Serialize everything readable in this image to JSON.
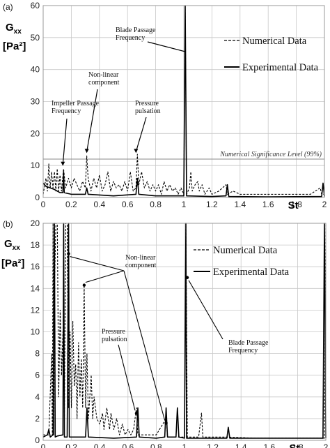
{
  "chart_data": [
    {
      "panel_label": "(a)",
      "type": "line",
      "ylabel_main": "G",
      "ylabel_sub": "xx",
      "ylabel_unit": "[Pa²]",
      "xlabel": "St",
      "xlim": [
        0,
        2
      ],
      "ylim": [
        0,
        60
      ],
      "x_ticks": [
        "0",
        "0.2",
        "0.4",
        "0.6",
        "0.8",
        "1",
        "1.2",
        "1.4",
        "1.6",
        "1.8",
        "2"
      ],
      "y_ticks": [
        "0",
        "10",
        "20",
        "30",
        "40",
        "50",
        "60"
      ],
      "grid": true,
      "legend_position": "top-right",
      "legend": [
        "Numerical Data",
        "Experimental Data"
      ],
      "significance_level": {
        "label": "Numerical Significance Level  (99%)",
        "value": 12
      },
      "annotations": [
        {
          "text": [
            "Blade Passage",
            "Frequency"
          ],
          "x": 1.01,
          "y": 60
        },
        {
          "text": [
            "Non-linear",
            "component"
          ],
          "x": 0.31,
          "y": 13
        },
        {
          "text": [
            "Impeller Passage",
            "Frequency"
          ],
          "x": 0.14,
          "y": 9
        },
        {
          "text": [
            "Pressure",
            "pulsation"
          ],
          "x": 0.66,
          "y": 13
        }
      ],
      "series": [
        {
          "name": "Numerical Data",
          "style": "dashed",
          "points": [
            [
              0,
              1
            ],
            [
              0.02,
              6
            ],
            [
              0.03,
              2
            ],
            [
              0.04,
              10.5
            ],
            [
              0.05,
              3
            ],
            [
              0.06,
              8
            ],
            [
              0.07,
              3
            ],
            [
              0.08,
              8
            ],
            [
              0.09,
              2
            ],
            [
              0.1,
              9
            ],
            [
              0.11,
              2
            ],
            [
              0.12,
              7
            ],
            [
              0.13,
              2
            ],
            [
              0.145,
              9
            ],
            [
              0.16,
              3
            ],
            [
              0.18,
              6
            ],
            [
              0.2,
              3
            ],
            [
              0.22,
              6
            ],
            [
              0.24,
              4
            ],
            [
              0.26,
              2
            ],
            [
              0.28,
              5
            ],
            [
              0.3,
              3
            ],
            [
              0.31,
              13
            ],
            [
              0.32,
              6
            ],
            [
              0.34,
              2
            ],
            [
              0.36,
              6
            ],
            [
              0.38,
              3
            ],
            [
              0.4,
              7
            ],
            [
              0.42,
              2
            ],
            [
              0.44,
              4
            ],
            [
              0.46,
              8
            ],
            [
              0.48,
              2
            ],
            [
              0.5,
              5
            ],
            [
              0.52,
              3
            ],
            [
              0.54,
              4
            ],
            [
              0.56,
              2
            ],
            [
              0.58,
              5
            ],
            [
              0.6,
              2
            ],
            [
              0.62,
              8
            ],
            [
              0.64,
              2
            ],
            [
              0.66,
              3
            ],
            [
              0.67,
              13.5
            ],
            [
              0.68,
              4
            ],
            [
              0.7,
              8
            ],
            [
              0.72,
              3
            ],
            [
              0.74,
              5
            ],
            [
              0.76,
              2
            ],
            [
              0.78,
              4
            ],
            [
              0.8,
              2
            ],
            [
              0.82,
              4
            ],
            [
              0.84,
              1
            ],
            [
              0.86,
              5
            ],
            [
              0.88,
              2
            ],
            [
              0.9,
              4
            ],
            [
              0.92,
              2
            ],
            [
              0.94,
              3
            ],
            [
              0.96,
              1
            ],
            [
              0.98,
              3
            ],
            [
              1.0,
              1
            ],
            [
              1.01,
              60
            ],
            [
              1.02,
              1
            ],
            [
              1.04,
              3
            ],
            [
              1.05,
              8
            ],
            [
              1.06,
              2
            ],
            [
              1.08,
              4
            ],
            [
              1.1,
              5
            ],
            [
              1.11,
              2
            ],
            [
              1.13,
              4
            ],
            [
              1.15,
              1
            ],
            [
              1.18,
              3
            ],
            [
              1.2,
              1
            ],
            [
              1.25,
              2
            ],
            [
              1.3,
              4
            ],
            [
              1.31,
              1
            ],
            [
              1.35,
              2
            ],
            [
              1.4,
              1
            ],
            [
              1.5,
              1
            ],
            [
              1.6,
              1
            ],
            [
              1.7,
              1
            ],
            [
              1.8,
              1
            ],
            [
              1.9,
              1
            ],
            [
              1.97,
              3
            ],
            [
              1.98,
              1
            ],
            [
              2.0,
              1
            ]
          ]
        },
        {
          "name": "Experimental Data",
          "style": "solid",
          "points": [
            [
              0,
              4.5
            ],
            [
              0.02,
              3.5
            ],
            [
              0.05,
              3
            ],
            [
              0.08,
              2.5
            ],
            [
              0.1,
              2
            ],
            [
              0.12,
              1.5
            ],
            [
              0.14,
              1.5
            ],
            [
              0.145,
              8
            ],
            [
              0.15,
              1.5
            ],
            [
              0.2,
              1
            ],
            [
              0.3,
              1
            ],
            [
              0.31,
              3
            ],
            [
              0.32,
              1
            ],
            [
              0.5,
              0.5
            ],
            [
              0.66,
              1
            ],
            [
              0.67,
              6
            ],
            [
              0.68,
              1
            ],
            [
              0.8,
              0.5
            ],
            [
              1.0,
              0.5
            ],
            [
              1.01,
              60
            ],
            [
              1.02,
              0.5
            ],
            [
              1.2,
              0.3
            ],
            [
              1.3,
              0.5
            ],
            [
              1.31,
              4
            ],
            [
              1.32,
              0.3
            ],
            [
              1.6,
              0.2
            ],
            [
              1.98,
              0.3
            ],
            [
              1.99,
              4.5
            ],
            [
              2.0,
              0.3
            ]
          ]
        }
      ]
    },
    {
      "panel_label": "(b)",
      "type": "line",
      "ylabel_main": "G",
      "ylabel_sub": "xx",
      "ylabel_unit": "[Pa²]",
      "xlabel": "St",
      "xlim": [
        0,
        2
      ],
      "ylim": [
        0,
        20
      ],
      "x_ticks": [
        "0",
        "0.2",
        "0.4",
        "0.6",
        "0.8",
        "1",
        "1.2",
        "1.4",
        "1.6",
        "1.8",
        "2"
      ],
      "y_ticks": [
        "0",
        "2",
        "4",
        "6",
        "8",
        "10",
        "12",
        "14",
        "16",
        "18",
        "20"
      ],
      "grid": true,
      "legend_position": "top-right",
      "legend": [
        "Numerical Data",
        "Experimental Data"
      ],
      "annotations": [
        {
          "text": [
            "Non-linear",
            "component"
          ],
          "targets": [
            [
              0.18,
              17.2
            ],
            [
              0.29,
              14.3
            ],
            [
              0.87,
              1.6
            ]
          ]
        },
        {
          "text": [
            "Pressure",
            "pulsation"
          ],
          "targets": [
            [
              0.66,
              2.5
            ]
          ]
        },
        {
          "text": [
            "Blade Passage",
            "Frequency"
          ],
          "targets": [
            [
              1.02,
              15.0
            ]
          ]
        }
      ],
      "series": [
        {
          "name": "Numerical Data",
          "style": "dashed",
          "points": [
            [
              0,
              0.5
            ],
            [
              0.04,
              0.5
            ],
            [
              0.06,
              8
            ],
            [
              0.065,
              0.5
            ],
            [
              0.07,
              20
            ],
            [
              0.075,
              0.5
            ],
            [
              0.08,
              14
            ],
            [
              0.09,
              20
            ],
            [
              0.1,
              20
            ],
            [
              0.11,
              4
            ],
            [
              0.12,
              12
            ],
            [
              0.13,
              6
            ],
            [
              0.14,
              10
            ],
            [
              0.15,
              2
            ],
            [
              0.16,
              20
            ],
            [
              0.17,
              20
            ],
            [
              0.18,
              3
            ],
            [
              0.19,
              10
            ],
            [
              0.2,
              3
            ],
            [
              0.21,
              11
            ],
            [
              0.22,
              5
            ],
            [
              0.23,
              7
            ],
            [
              0.24,
              2
            ],
            [
              0.25,
              9
            ],
            [
              0.26,
              4
            ],
            [
              0.27,
              7.5
            ],
            [
              0.28,
              3
            ],
            [
              0.29,
              14.3
            ],
            [
              0.3,
              3
            ],
            [
              0.31,
              8
            ],
            [
              0.32,
              2
            ],
            [
              0.34,
              6
            ],
            [
              0.35,
              2
            ],
            [
              0.36,
              4
            ],
            [
              0.38,
              2
            ],
            [
              0.4,
              1.5
            ],
            [
              0.42,
              2.5
            ],
            [
              0.43,
              1
            ],
            [
              0.45,
              3
            ],
            [
              0.47,
              1
            ],
            [
              0.48,
              2.5
            ],
            [
              0.5,
              1
            ],
            [
              0.52,
              2
            ],
            [
              0.54,
              0.5
            ],
            [
              0.56,
              1.5
            ],
            [
              0.58,
              0.5
            ],
            [
              0.6,
              1
            ],
            [
              0.62,
              0.5
            ],
            [
              0.64,
              1
            ],
            [
              0.66,
              3
            ],
            [
              0.67,
              0.5
            ],
            [
              0.7,
              0.5
            ],
            [
              0.8,
              0.5
            ],
            [
              0.87,
              2
            ],
            [
              0.88,
              0.3
            ],
            [
              1.0,
              0.3
            ],
            [
              1.01,
              20
            ],
            [
              1.02,
              0.3
            ],
            [
              1.1,
              0.3
            ],
            [
              1.12,
              2.5
            ],
            [
              1.13,
              0.3
            ],
            [
              1.3,
              0.3
            ],
            [
              1.5,
              0.2
            ],
            [
              1.8,
              0.2
            ],
            [
              1.99,
              0.2
            ],
            [
              2.0,
              20
            ]
          ]
        },
        {
          "name": "Experimental Data",
          "style": "solid",
          "points": [
            [
              0,
              0.3
            ],
            [
              0.03,
              0.5
            ],
            [
              0.04,
              1
            ],
            [
              0.05,
              0.3
            ],
            [
              0.07,
              0.5
            ],
            [
              0.08,
              20
            ],
            [
              0.085,
              0.3
            ],
            [
              0.1,
              0.4
            ],
            [
              0.14,
              0.5
            ],
            [
              0.145,
              20
            ],
            [
              0.15,
              0.3
            ],
            [
              0.17,
              0.3
            ],
            [
              0.18,
              20
            ],
            [
              0.185,
              0.3
            ],
            [
              0.3,
              0.3
            ],
            [
              0.31,
              3
            ],
            [
              0.32,
              0.3
            ],
            [
              0.5,
              0.2
            ],
            [
              0.66,
              0.3
            ],
            [
              0.67,
              3
            ],
            [
              0.68,
              0.3
            ],
            [
              0.8,
              0.2
            ],
            [
              0.86,
              0.3
            ],
            [
              0.87,
              3
            ],
            [
              0.88,
              0.3
            ],
            [
              0.94,
              0.3
            ],
            [
              0.95,
              3
            ],
            [
              0.96,
              0.3
            ],
            [
              1.0,
              0.2
            ],
            [
              1.01,
              20
            ],
            [
              1.015,
              0.2
            ],
            [
              1.3,
              0.2
            ],
            [
              1.31,
              1.2
            ],
            [
              1.32,
              0.2
            ],
            [
              1.98,
              0.2
            ],
            [
              1.99,
              20
            ],
            [
              2.0,
              0.2
            ]
          ]
        }
      ]
    }
  ]
}
